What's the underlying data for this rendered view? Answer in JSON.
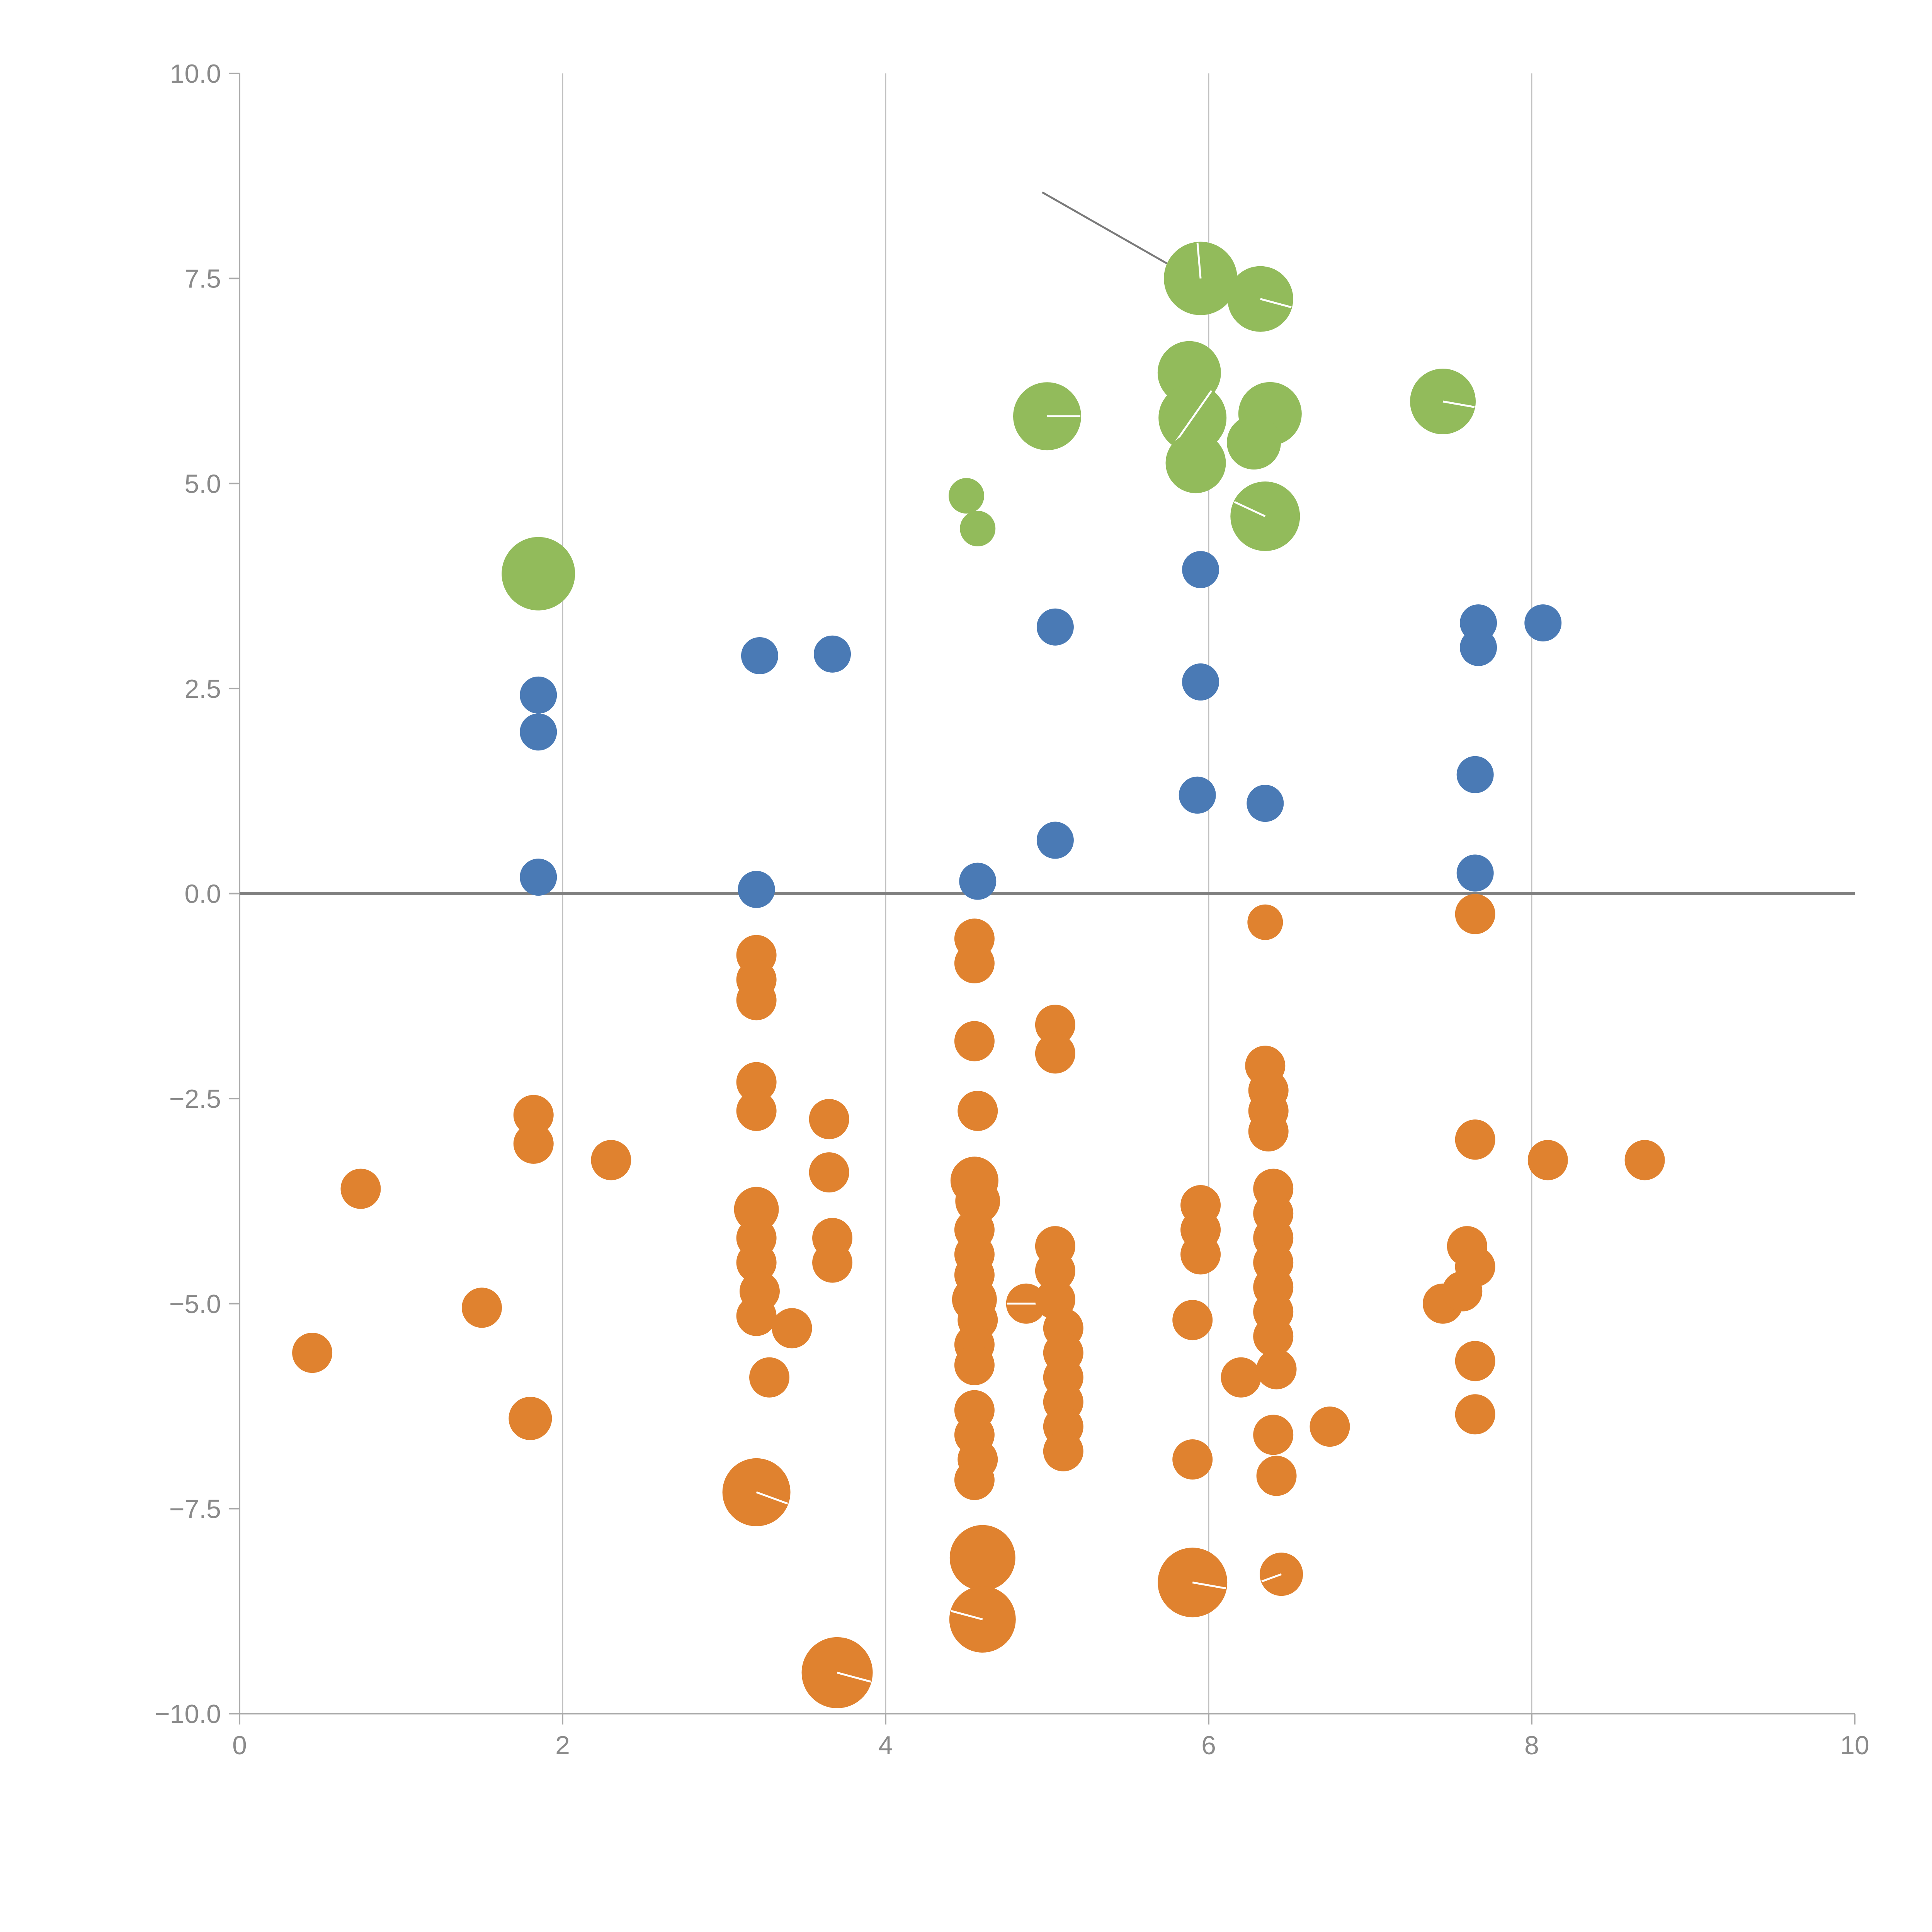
{
  "figure": {
    "background": "#ffffff",
    "title": ""
  },
  "chart_data": {
    "type": "scatter",
    "title": "",
    "xlabel": "",
    "ylabel": "",
    "xlim": [
      0,
      10
    ],
    "ylim": [
      -10,
      10
    ],
    "x_ticks": [
      0,
      2,
      4,
      6,
      8,
      10
    ],
    "x_tick_labels": [
      "0",
      "2",
      "4",
      "6",
      "8",
      "10"
    ],
    "y_ticks": [
      10.0,
      7.5,
      5.0,
      2.5,
      0.0,
      -2.5,
      -5.0,
      -7.5,
      -10.0
    ],
    "y_tick_labels": [
      "10.0",
      "7.5",
      "5.0",
      "2.5",
      "0.0",
      "−2.5",
      "−5.0",
      "−7.5",
      "−10.0"
    ],
    "grid_x": [
      2,
      4,
      6,
      8
    ],
    "zero_line_y": 0,
    "legend": "none",
    "colors": {
      "green": "#92bb5b",
      "blue": "#4a7ab5",
      "orange": "#e0822f",
      "grid": "#c2c2c2",
      "spine": "#a8a8a8",
      "zero_line": "#7f7f7f",
      "annotation_line": "#7a7a7a",
      "tick_label": "#8a8a8a",
      "marker_tick": "#ffffff"
    },
    "annotation_line": {
      "x1": 4.97,
      "y1": 8.55,
      "x2": 5.86,
      "y2": 7.55
    },
    "series": [
      {
        "name": "group-orange",
        "color_key": "orange",
        "default_r": 52,
        "points": [
          [
            0.45,
            -5.6
          ],
          [
            0.75,
            -3.6
          ],
          [
            1.5,
            -5.05
          ],
          [
            1.82,
            -2.7
          ],
          [
            1.82,
            -3.05
          ],
          [
            1.8,
            -6.4,
            56
          ],
          [
            2.3,
            -3.25
          ],
          [
            3.2,
            -0.75
          ],
          [
            3.2,
            -1.05
          ],
          [
            3.2,
            -1.3
          ],
          [
            3.2,
            -2.3
          ],
          [
            3.2,
            -2.65
          ],
          [
            3.2,
            -3.85,
            58
          ],
          [
            3.2,
            -4.2
          ],
          [
            3.2,
            -4.5
          ],
          [
            3.22,
            -4.85
          ],
          [
            3.2,
            -5.15
          ],
          [
            3.28,
            -5.9
          ],
          [
            3.42,
            -5.3
          ],
          [
            3.2,
            -7.3,
            88,
            [
              20
            ]
          ],
          [
            3.65,
            -2.75
          ],
          [
            3.65,
            -3.4
          ],
          [
            3.67,
            -4.2
          ],
          [
            3.67,
            -4.5
          ],
          [
            3.7,
            -9.5,
            92,
            [
              15
            ]
          ],
          [
            4.55,
            -0.55
          ],
          [
            4.55,
            -0.85
          ],
          [
            4.55,
            -1.8
          ],
          [
            4.57,
            -2.65
          ],
          [
            4.55,
            -3.5,
            62
          ],
          [
            4.57,
            -3.75,
            58
          ],
          [
            4.55,
            -4.1
          ],
          [
            4.55,
            -4.4
          ],
          [
            4.55,
            -4.65
          ],
          [
            4.55,
            -4.95,
            58
          ],
          [
            4.57,
            -5.2
          ],
          [
            4.55,
            -5.5
          ],
          [
            4.55,
            -5.75
          ],
          [
            4.55,
            -6.3
          ],
          [
            4.55,
            -6.6
          ],
          [
            4.57,
            -6.9
          ],
          [
            4.55,
            -7.15
          ],
          [
            4.6,
            -8.1,
            85
          ],
          [
            4.6,
            -8.85,
            86,
            [
              195
            ]
          ],
          [
            5.05,
            -1.6
          ],
          [
            5.05,
            -1.95
          ],
          [
            4.87,
            -5.0,
            52,
            [
              0,
              180
            ]
          ],
          [
            5.05,
            -4.3
          ],
          [
            5.05,
            -4.6
          ],
          [
            5.05,
            -4.95
          ],
          [
            5.1,
            -5.3
          ],
          [
            5.1,
            -5.6
          ],
          [
            5.1,
            -5.9
          ],
          [
            5.1,
            -6.2
          ],
          [
            5.1,
            -6.5
          ],
          [
            5.1,
            -6.8
          ],
          [
            5.95,
            -3.8
          ],
          [
            5.95,
            -4.1
          ],
          [
            5.95,
            -4.4
          ],
          [
            5.9,
            -5.2
          ],
          [
            5.9,
            -6.9
          ],
          [
            5.9,
            -8.4,
            90,
            [
              10
            ]
          ],
          [
            6.2,
            -5.9
          ],
          [
            6.35,
            -0.35,
            46
          ],
          [
            6.35,
            -2.1
          ],
          [
            6.37,
            -2.4
          ],
          [
            6.37,
            -2.65
          ],
          [
            6.37,
            -2.9
          ],
          [
            6.4,
            -3.6
          ],
          [
            6.4,
            -3.9
          ],
          [
            6.4,
            -4.2
          ],
          [
            6.4,
            -4.5
          ],
          [
            6.4,
            -4.8
          ],
          [
            6.4,
            -5.1
          ],
          [
            6.4,
            -5.4
          ],
          [
            6.42,
            -5.8
          ],
          [
            6.4,
            -6.6
          ],
          [
            6.42,
            -7.1
          ],
          [
            6.45,
            -8.3,
            56,
            [
              160
            ]
          ],
          [
            6.75,
            -6.5
          ],
          [
            7.45,
            -5.0
          ],
          [
            7.57,
            -4.85
          ],
          [
            7.6,
            -4.3
          ],
          [
            7.65,
            -4.55
          ],
          [
            7.65,
            -3.0
          ],
          [
            7.65,
            -0.25
          ],
          [
            7.65,
            -5.7
          ],
          [
            7.65,
            -6.35
          ],
          [
            8.1,
            -3.25
          ],
          [
            8.7,
            -3.25
          ]
        ]
      },
      {
        "name": "group-blue",
        "color_key": "blue",
        "default_r": 48,
        "points": [
          [
            1.85,
            2.42
          ],
          [
            1.85,
            1.97
          ],
          [
            1.85,
            0.2
          ],
          [
            3.22,
            2.9
          ],
          [
            3.67,
            2.92
          ],
          [
            3.2,
            0.05
          ],
          [
            4.57,
            0.15
          ],
          [
            5.05,
            3.25
          ],
          [
            5.05,
            0.65
          ],
          [
            5.95,
            3.95
          ],
          [
            5.95,
            2.58
          ],
          [
            5.93,
            1.2
          ],
          [
            6.35,
            1.1
          ],
          [
            7.67,
            3.3
          ],
          [
            7.67,
            3.0
          ],
          [
            8.07,
            3.3
          ],
          [
            7.65,
            1.45
          ],
          [
            7.65,
            0.25
          ]
        ]
      },
      {
        "name": "group-green",
        "color_key": "green",
        "default_r": 85,
        "points": [
          [
            1.85,
            3.9,
            95
          ],
          [
            5.0,
            5.82,
            88,
            [
              0
            ]
          ],
          [
            4.5,
            4.85,
            46
          ],
          [
            4.57,
            4.45,
            46
          ],
          [
            5.95,
            7.5,
            95,
            [
              265
            ]
          ],
          [
            6.32,
            7.25,
            85,
            [
              15
            ]
          ],
          [
            5.88,
            6.35,
            82
          ],
          [
            5.9,
            5.8,
            88,
            [
              -55,
              125
            ]
          ],
          [
            5.92,
            5.25,
            78
          ],
          [
            6.38,
            5.85,
            82
          ],
          [
            6.28,
            5.5,
            70
          ],
          [
            7.45,
            6.0,
            85,
            [
              10
            ]
          ],
          [
            6.35,
            4.6,
            90,
            [
              205
            ]
          ]
        ]
      }
    ]
  }
}
